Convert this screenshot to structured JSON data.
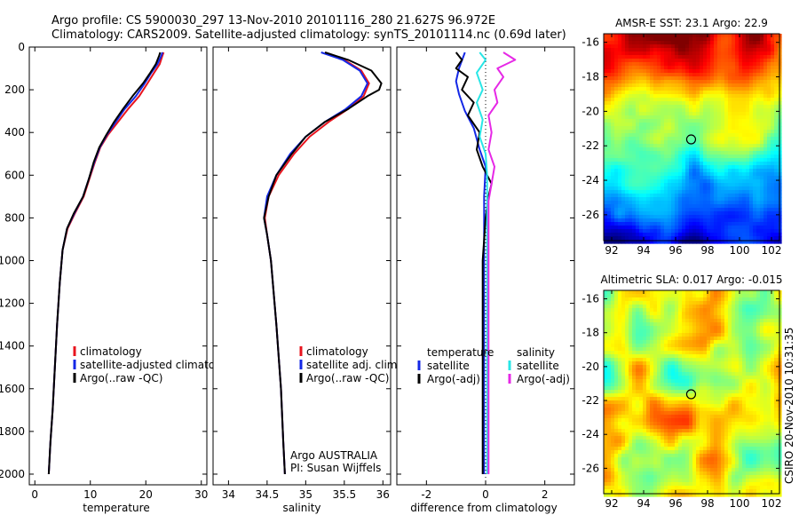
{
  "header": {
    "line1": "Argo profile: CS 5900030_297 13-Nov-2010 20101116_280 21.627S 96.972E",
    "line2": "Climatology: CARS2009. Satellite-adjusted climatology: synTS_20101114.nc (0.69d later)"
  },
  "credit": "CSIRO 20-Nov-2010 10:31:35",
  "colors": {
    "climatology": "#e8141e",
    "satellite": "#1428e6",
    "argo": "#000000",
    "sal_satellite": "#28e6e6",
    "sal_argo": "#e628e6"
  },
  "chart_data": [
    {
      "type": "line",
      "xlabel": "temperature",
      "ylabel": "",
      "xlim": [
        -1,
        31
      ],
      "ylim": [
        2050,
        0
      ],
      "xticks": [
        0,
        10,
        20,
        30
      ],
      "yticks": [
        0,
        200,
        400,
        600,
        800,
        1000,
        1200,
        1400,
        1600,
        1800,
        2000
      ],
      "legend": {
        "position": "lower-right",
        "entries": [
          "climatology",
          "satellite-adjusted climatology",
          "Argo(..raw -QC)"
        ]
      },
      "series": [
        {
          "name": "climatology",
          "points": [
            [
              23.2,
              25
            ],
            [
              23.0,
              40
            ],
            [
              22.5,
              80
            ],
            [
              21.5,
              120
            ],
            [
              20.3,
              170
            ],
            [
              18.8,
              230
            ],
            [
              16.8,
              290
            ],
            [
              15.0,
              350
            ],
            [
              13.2,
              410
            ],
            [
              11.8,
              470
            ],
            [
              10.8,
              540
            ],
            [
              9.8,
              620
            ],
            [
              8.8,
              700
            ],
            [
              7.2,
              780
            ],
            [
              5.9,
              850
            ],
            [
              5.0,
              950
            ],
            [
              4.5,
              1100
            ],
            [
              4.0,
              1300
            ],
            [
              3.6,
              1500
            ],
            [
              3.2,
              1700
            ],
            [
              2.8,
              1850
            ],
            [
              2.5,
              2000
            ]
          ]
        },
        {
          "name": "satellite-adjusted climatology",
          "points": [
            [
              23.0,
              25
            ],
            [
              22.8,
              40
            ],
            [
              22.1,
              80
            ],
            [
              21.0,
              120
            ],
            [
              19.8,
              170
            ],
            [
              18.2,
              230
            ],
            [
              16.2,
              290
            ],
            [
              14.6,
              350
            ],
            [
              13.0,
              410
            ],
            [
              11.7,
              470
            ],
            [
              10.7,
              540
            ],
            [
              9.7,
              620
            ],
            [
              8.7,
              700
            ],
            [
              7.1,
              780
            ],
            [
              5.8,
              850
            ],
            [
              5.0,
              950
            ],
            [
              4.5,
              1100
            ],
            [
              4.0,
              1300
            ],
            [
              3.6,
              1500
            ],
            [
              3.2,
              1700
            ],
            [
              2.8,
              1850
            ],
            [
              2.5,
              2000
            ]
          ]
        },
        {
          "name": "Argo(..raw -QC)",
          "points": [
            [
              22.6,
              25
            ],
            [
              22.4,
              40
            ],
            [
              21.8,
              80
            ],
            [
              20.8,
              120
            ],
            [
              19.5,
              170
            ],
            [
              17.6,
              230
            ],
            [
              15.9,
              290
            ],
            [
              14.3,
              350
            ],
            [
              12.9,
              410
            ],
            [
              11.6,
              470
            ],
            [
              10.6,
              540
            ],
            [
              9.7,
              620
            ],
            [
              8.7,
              700
            ],
            [
              7.0,
              780
            ],
            [
              5.8,
              850
            ],
            [
              5.0,
              950
            ],
            [
              4.5,
              1100
            ],
            [
              4.0,
              1300
            ],
            [
              3.6,
              1500
            ],
            [
              3.2,
              1700
            ],
            [
              2.8,
              1850
            ],
            [
              2.5,
              2000
            ]
          ]
        }
      ]
    },
    {
      "type": "line",
      "xlabel": "salinity",
      "xlim": [
        33.8,
        36.1
      ],
      "ylim": [
        2050,
        0
      ],
      "xticks": [
        34,
        34.5,
        35,
        35.5,
        36
      ],
      "legend": {
        "position": "lower-right",
        "entries": [
          "climatology",
          "satellite adj. clim.",
          "Argo(..raw -QC)"
        ]
      },
      "annotation": [
        "Argo AUSTRALIA",
        "PI: Susan Wijffels"
      ],
      "series": [
        {
          "name": "climatology",
          "points": [
            [
              35.25,
              25
            ],
            [
              35.5,
              60
            ],
            [
              35.72,
              110
            ],
            [
              35.82,
              170
            ],
            [
              35.75,
              230
            ],
            [
              35.55,
              290
            ],
            [
              35.3,
              350
            ],
            [
              35.05,
              420
            ],
            [
              34.85,
              500
            ],
            [
              34.65,
              600
            ],
            [
              34.52,
              700
            ],
            [
              34.47,
              800
            ],
            [
              34.5,
              880
            ],
            [
              34.55,
              1000
            ],
            [
              34.62,
              1300
            ],
            [
              34.68,
              1600
            ],
            [
              34.71,
              1850
            ],
            [
              34.73,
              2000
            ]
          ]
        },
        {
          "name": "satellite adj. clim.",
          "points": [
            [
              35.2,
              25
            ],
            [
              35.48,
              60
            ],
            [
              35.7,
              110
            ],
            [
              35.8,
              170
            ],
            [
              35.72,
              230
            ],
            [
              35.52,
              290
            ],
            [
              35.25,
              350
            ],
            [
              35.0,
              420
            ],
            [
              34.8,
              500
            ],
            [
              34.62,
              600
            ],
            [
              34.5,
              700
            ],
            [
              34.46,
              800
            ],
            [
              34.5,
              880
            ],
            [
              34.55,
              1000
            ],
            [
              34.62,
              1300
            ],
            [
              34.68,
              1600
            ],
            [
              34.71,
              1850
            ],
            [
              34.73,
              2000
            ]
          ]
        },
        {
          "name": "Argo(..raw -QC)",
          "points": [
            [
              35.25,
              25
            ],
            [
              35.55,
              60
            ],
            [
              35.85,
              110
            ],
            [
              35.98,
              170
            ],
            [
              35.95,
              200
            ],
            [
              35.8,
              230
            ],
            [
              35.55,
              290
            ],
            [
              35.25,
              350
            ],
            [
              35.0,
              420
            ],
            [
              34.82,
              500
            ],
            [
              34.62,
              600
            ],
            [
              34.52,
              700
            ],
            [
              34.46,
              800
            ],
            [
              34.5,
              880
            ],
            [
              34.55,
              1000
            ],
            [
              34.62,
              1300
            ],
            [
              34.68,
              1600
            ],
            [
              34.71,
              1850
            ],
            [
              34.73,
              2000
            ]
          ]
        }
      ]
    },
    {
      "type": "line",
      "xlabel": "difference from climatology",
      "xlim": [
        -3,
        3
      ],
      "ylim": [
        2050,
        0
      ],
      "xticks": [
        -2,
        0,
        2
      ],
      "legend": {
        "position": "lower-center",
        "entries": [
          "temperature",
          "satellite",
          "Argo(-adj)",
          "salinity",
          "satellite",
          "Argo(-adj)"
        ]
      },
      "series": [
        {
          "name": "satellite",
          "points": [
            [
              -0.7,
              25
            ],
            [
              -0.9,
              100
            ],
            [
              -1.0,
              160
            ],
            [
              -0.9,
              220
            ],
            [
              -0.7,
              300
            ],
            [
              -0.4,
              380
            ],
            [
              -0.2,
              480
            ],
            [
              0,
              560
            ],
            [
              -0.05,
              700
            ],
            [
              -0.05,
              1000
            ],
            [
              -0.05,
              1500
            ],
            [
              -0.05,
              2000
            ]
          ]
        },
        {
          "name": "Argo(-adj)",
          "points": [
            [
              -1.0,
              25
            ],
            [
              -0.8,
              60
            ],
            [
              -1.0,
              100
            ],
            [
              -0.6,
              140
            ],
            [
              -0.8,
              200
            ],
            [
              -0.4,
              260
            ],
            [
              -0.6,
              320
            ],
            [
              -0.2,
              400
            ],
            [
              -0.3,
              480
            ],
            [
              -0.1,
              560
            ],
            [
              0.2,
              640
            ],
            [
              0.1,
              700
            ],
            [
              0,
              800
            ],
            [
              -0.1,
              1000
            ],
            [
              -0.1,
              1500
            ],
            [
              -0.1,
              2000
            ]
          ]
        },
        {
          "name": "satellite",
          "points": [
            [
              -0.2,
              25
            ],
            [
              0,
              60
            ],
            [
              -0.3,
              120
            ],
            [
              -0.1,
              200
            ],
            [
              -0.3,
              260
            ],
            [
              -0.1,
              340
            ],
            [
              -0.2,
              420
            ],
            [
              0,
              500
            ],
            [
              0.05,
              600
            ],
            [
              0.05,
              700
            ],
            [
              0.05,
              1000
            ],
            [
              0.05,
              2000
            ]
          ]
        },
        {
          "name": "Argo(-adj)",
          "points": [
            [
              0.6,
              25
            ],
            [
              1.0,
              60
            ],
            [
              0.4,
              100
            ],
            [
              0.6,
              140
            ],
            [
              0.3,
              200
            ],
            [
              0.4,
              260
            ],
            [
              0.1,
              320
            ],
            [
              0.2,
              400
            ],
            [
              0.1,
              480
            ],
            [
              0.3,
              560
            ],
            [
              0.2,
              640
            ],
            [
              0.1,
              720
            ],
            [
              0.1,
              800
            ],
            [
              0.1,
              1000
            ],
            [
              0.1,
              1500
            ],
            [
              0.1,
              2000
            ]
          ]
        }
      ]
    },
    {
      "type": "heatmap",
      "title": "AMSR-E SST: 23.1 Argo: 22.9",
      "xlim": [
        91.5,
        102.5
      ],
      "ylim": [
        -27.5,
        -15.5
      ],
      "xticks": [
        92,
        94,
        96,
        98,
        100,
        102
      ],
      "yticks": [
        -16,
        -18,
        -20,
        -22,
        -24,
        -26
      ],
      "marker": {
        "lon": 96.97,
        "lat": -21.63
      }
    },
    {
      "type": "heatmap",
      "title": "Altimetric SLA: 0.017 Argo: -0.015",
      "xlim": [
        91.5,
        102.5
      ],
      "ylim": [
        -27.5,
        -15.5
      ],
      "xticks": [
        92,
        94,
        96,
        98,
        100,
        102
      ],
      "yticks": [
        -16,
        -18,
        -20,
        -22,
        -24,
        -26
      ],
      "marker": {
        "lon": 96.97,
        "lat": -21.63
      }
    }
  ]
}
